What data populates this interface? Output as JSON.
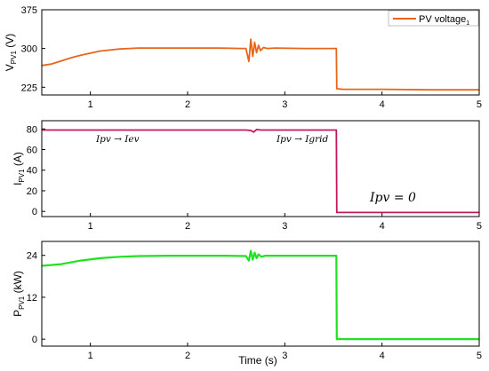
{
  "chart_data": [
    {
      "type": "line",
      "ylabel": "V",
      "ylabel_sub": "PV1",
      "ylabel_unit": " (V)",
      "xlim": [
        0.5,
        5
      ],
      "ylim": [
        210,
        375
      ],
      "yticks": [
        225,
        300,
        375
      ],
      "xticks": [
        1,
        2,
        3,
        4,
        5
      ],
      "legend": {
        "label": "PV voltage",
        "label_sub": "1",
        "placement": "top-right"
      },
      "series": [
        {
          "name": "PV voltage1",
          "color": "#E8651A",
          "x": [
            0.5,
            0.6,
            0.7,
            0.8,
            0.9,
            1.0,
            1.1,
            1.2,
            1.3,
            1.4,
            1.5,
            1.7,
            2.0,
            2.3,
            2.55,
            2.6,
            2.63,
            2.65,
            2.67,
            2.69,
            2.71,
            2.73,
            2.75,
            2.78,
            2.82,
            2.9,
            3.2,
            3.53,
            3.535,
            3.6,
            4.0,
            4.5,
            5.0
          ],
          "y": [
            267,
            270,
            276,
            282,
            287,
            291,
            295,
            297,
            299,
            300,
            301,
            301,
            301,
            301,
            300,
            300,
            275,
            318,
            285,
            312,
            292,
            306,
            296,
            302,
            300,
            301,
            300,
            300,
            222,
            221,
            221,
            220,
            220
          ]
        }
      ]
    },
    {
      "type": "line",
      "ylabel": "I",
      "ylabel_sub": "PV1",
      "ylabel_unit": " (A)",
      "xlim": [
        0.5,
        5
      ],
      "ylim": [
        -5,
        88
      ],
      "yticks": [
        0,
        20,
        40,
        60,
        80
      ],
      "xticks": [
        1,
        2,
        3,
        4,
        5
      ],
      "annotations": [
        "Ipv → Iev",
        "Ipv → Igrid",
        "Ipv = 0"
      ],
      "series": [
        {
          "name": "",
          "color": "#C2185B",
          "x": [
            0.5,
            1.0,
            2.0,
            2.6,
            2.65,
            2.68,
            2.71,
            2.75,
            3.0,
            3.53,
            3.535,
            3.6,
            4.0,
            5.0
          ],
          "y": [
            79,
            79,
            79,
            79,
            78.5,
            77,
            79.5,
            79,
            79,
            79,
            -1,
            -1,
            -1,
            -1
          ]
        }
      ]
    },
    {
      "type": "line",
      "ylabel": "P",
      "ylabel_sub": "PV1",
      "ylabel_unit": " (kW)",
      "xlabel": "Time (s)",
      "xlim": [
        0.5,
        5
      ],
      "ylim": [
        -2,
        28
      ],
      "yticks": [
        0,
        12,
        24
      ],
      "xticks": [
        1,
        2,
        3,
        4,
        5
      ],
      "series": [
        {
          "name": "",
          "color": "#22E022",
          "x": [
            0.5,
            0.7,
            0.9,
            1.1,
            1.3,
            1.5,
            1.8,
            2.1,
            2.4,
            2.6,
            2.63,
            2.65,
            2.67,
            2.69,
            2.71,
            2.73,
            2.76,
            2.8,
            3.0,
            3.2,
            3.53,
            3.535,
            3.6,
            4.0,
            5.0
          ],
          "y": [
            21,
            21.5,
            22.5,
            23.2,
            23.6,
            23.8,
            23.9,
            23.9,
            23.9,
            23.8,
            22.5,
            25.3,
            22.8,
            24.8,
            23.2,
            24.3,
            23.6,
            23.9,
            23.9,
            23.9,
            23.9,
            0,
            0,
            0,
            0
          ]
        }
      ]
    }
  ]
}
